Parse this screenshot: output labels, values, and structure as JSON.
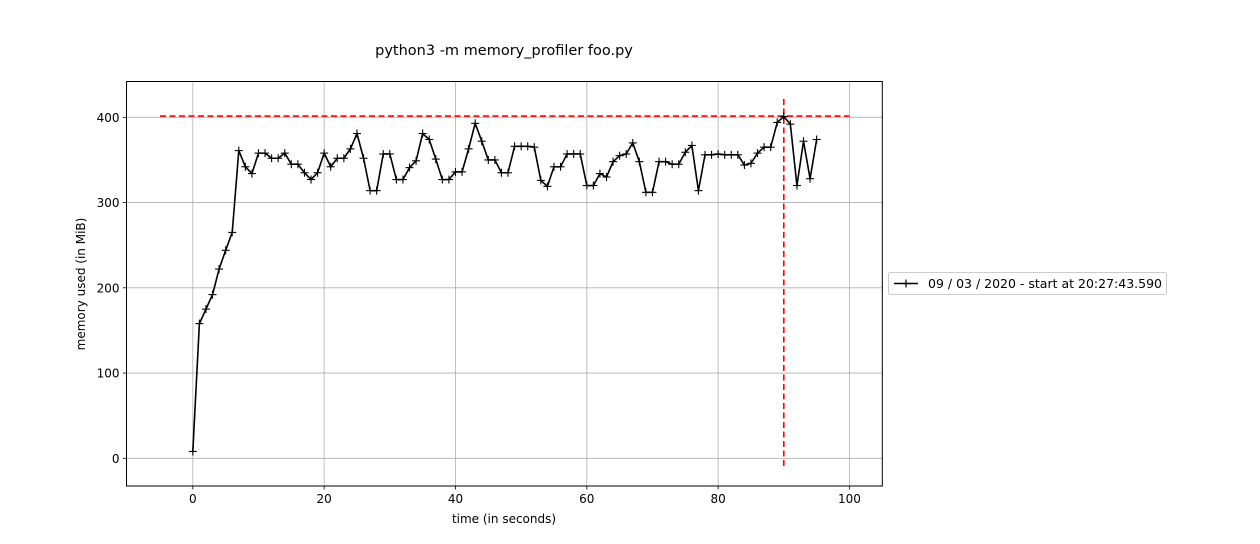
{
  "chart_data": {
    "type": "line",
    "title": "python3 -m memory_profiler foo.py",
    "xlabel": "time (in seconds)",
    "ylabel": "memory used (in MiB)",
    "xlim": [
      -10.1,
      105.0
    ],
    "ylim": [
      -32.5,
      441.8
    ],
    "grid": true,
    "legend_position": "center left, outside right of axes",
    "xticks": [
      0,
      20,
      40,
      60,
      80,
      100
    ],
    "yticks": [
      0,
      100,
      200,
      300,
      400
    ],
    "series": [
      {
        "name": "09 / 03 / 2020 - start at 20:27:43.590",
        "color": "#000000",
        "marker": "+",
        "x": [
          0,
          1,
          2,
          3,
          4,
          5,
          6,
          7,
          8,
          9,
          10,
          11,
          12,
          13,
          14,
          15,
          16,
          17,
          18,
          19,
          20,
          21,
          22,
          23,
          24,
          25,
          26,
          27,
          28,
          29,
          30,
          31,
          32,
          33,
          34,
          35,
          36,
          37,
          38,
          39,
          40,
          41,
          42,
          43,
          44,
          45,
          46,
          47,
          48,
          49,
          50,
          51,
          52,
          53,
          54,
          55,
          56,
          57,
          58,
          59,
          60,
          61,
          62,
          63,
          64,
          65,
          66,
          67,
          68,
          69,
          70,
          71,
          72,
          73,
          74,
          75,
          76,
          77,
          78,
          79,
          80,
          81,
          82,
          83,
          84,
          85,
          86,
          87,
          88,
          89,
          90,
          91,
          92,
          93,
          94,
          95
        ],
        "values": [
          8,
          158,
          175,
          192,
          222,
          244,
          265,
          361,
          342,
          334,
          358,
          358,
          352,
          352,
          358,
          345,
          345,
          335,
          327,
          335,
          358,
          342,
          352,
          352,
          363,
          381,
          352,
          314,
          314,
          357,
          357,
          327,
          327,
          341,
          349,
          381,
          374,
          351,
          327,
          327,
          336,
          336,
          363,
          393,
          372,
          350,
          350,
          335,
          335,
          366,
          366,
          366,
          365,
          326,
          319,
          342,
          342,
          357,
          357,
          357,
          320,
          320,
          334,
          330,
          348,
          355,
          357,
          370,
          348,
          312,
          312,
          348,
          348,
          345,
          345,
          359,
          367,
          314,
          356,
          356,
          357,
          356,
          356,
          356,
          344,
          346,
          358,
          365,
          365,
          394,
          401,
          392,
          320,
          372,
          328,
          374
        ]
      }
    ],
    "annotations": [
      {
        "type": "hline",
        "style": "dashed",
        "color": "#ff0000",
        "y": 401.5,
        "x_from": -5,
        "x_to": 100,
        "meaning": "peak memory"
      },
      {
        "type": "vline",
        "style": "dashed",
        "color": "#ff0000",
        "x": 90,
        "y_from": -10,
        "y_to": 421.5,
        "meaning": "time of peak"
      }
    ]
  },
  "legend": {
    "label": "09 / 03 / 2020 - start at 20:27:43.590"
  },
  "colors": {
    "line": "#000000",
    "peak": "#ff0000",
    "grid": "#b0b0b0",
    "spine": "#000000",
    "legend_border": "#cccccc"
  }
}
